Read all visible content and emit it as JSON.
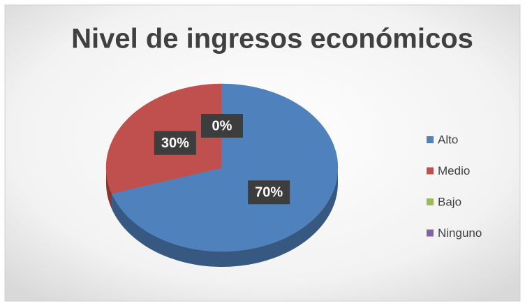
{
  "chart_data": {
    "type": "pie",
    "title": "Nivel de ingresos económicos",
    "categories": [
      "Alto",
      "Medio",
      "Bajo",
      "Ninguno"
    ],
    "values": [
      70,
      30,
      0,
      0
    ],
    "value_labels": [
      "70%",
      "30%",
      "0%",
      "0%"
    ],
    "colors": [
      "#4f81bd",
      "#c0504d",
      "#9bbb59",
      "#8064a2"
    ],
    "legend": "right"
  }
}
